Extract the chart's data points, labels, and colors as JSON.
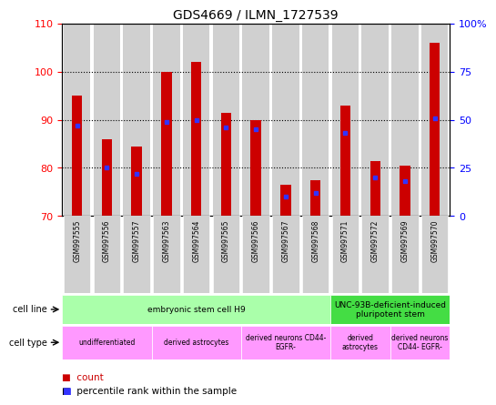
{
  "title": "GDS4669 / ILMN_1727539",
  "samples": [
    "GSM997555",
    "GSM997556",
    "GSM997557",
    "GSM997563",
    "GSM997564",
    "GSM997565",
    "GSM997566",
    "GSM997567",
    "GSM997568",
    "GSM997571",
    "GSM997572",
    "GSM997569",
    "GSM997570"
  ],
  "count_values": [
    95,
    86,
    84.5,
    100,
    102,
    91.5,
    90,
    76.5,
    77.5,
    93,
    81.5,
    80.5,
    106
  ],
  "percentile_values": [
    47,
    25,
    22,
    49,
    50,
    46,
    45,
    10,
    12,
    43,
    20,
    18,
    51
  ],
  "ylim_left": [
    70,
    110
  ],
  "ylim_right": [
    0,
    100
  ],
  "yticks_left": [
    70,
    80,
    90,
    100,
    110
  ],
  "yticks_right": [
    0,
    25,
    50,
    75,
    100
  ],
  "ytick_labels_right": [
    "0",
    "25",
    "50",
    "75",
    "100%"
  ],
  "bar_color": "#cc0000",
  "dot_color": "#3333ff",
  "bar_bottom": 70,
  "cell_line_groups": [
    {
      "label": "embryonic stem cell H9",
      "start": 0,
      "end": 9,
      "color": "#aaffaa"
    },
    {
      "label": "UNC-93B-deficient-induced\npluripotent stem",
      "start": 9,
      "end": 13,
      "color": "#44dd44"
    }
  ],
  "cell_type_groups": [
    {
      "label": "undifferentiated",
      "start": 0,
      "end": 3
    },
    {
      "label": "derived astrocytes",
      "start": 3,
      "end": 6
    },
    {
      "label": "derived neurons CD44-\nEGFR-",
      "start": 6,
      "end": 9
    },
    {
      "label": "derived\nastrocytes",
      "start": 9,
      "end": 11
    },
    {
      "label": "derived neurons\nCD44- EGFR-",
      "start": 11,
      "end": 13
    }
  ],
  "cell_type_color": "#ff99ff",
  "legend_count_color": "#cc0000",
  "legend_pct_color": "#3333ff"
}
